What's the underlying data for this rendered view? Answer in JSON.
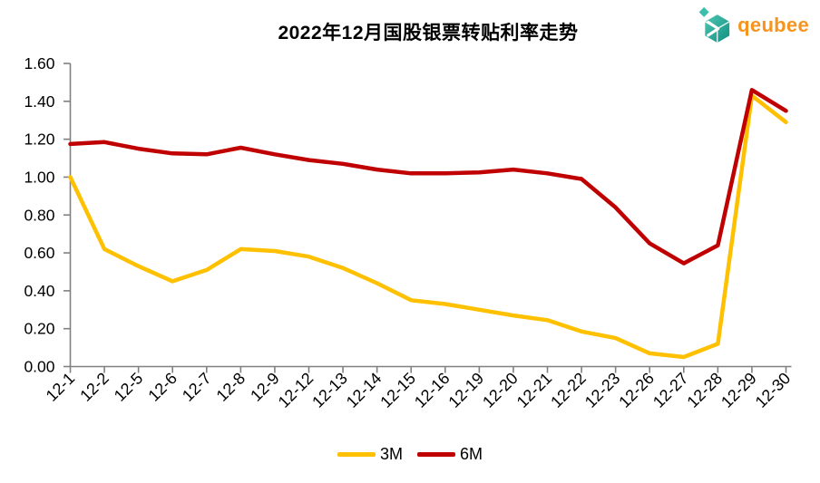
{
  "title": "2022年12月国股银票转贴利率走势",
  "logo": {
    "text": "qeubee",
    "text_color": "#F7941E",
    "mark_color_light": "#7ED4C4",
    "mark_color_mid": "#3BBFAC",
    "mark_color_dark": "#12897B"
  },
  "chart_data": {
    "type": "line",
    "title": "2022年12月国股银票转贴利率走势",
    "xlabel": "",
    "ylabel": "",
    "grid": false,
    "legend_position": "bottom",
    "axis_color": "#808080",
    "text_color": "#000000",
    "ylim": [
      0,
      1.6
    ],
    "ytick_step": 0.2,
    "ytick_labels": [
      "0.00",
      "0.20",
      "0.40",
      "0.60",
      "0.80",
      "1.00",
      "1.20",
      "1.40",
      "1.60"
    ],
    "categories": [
      "12-1",
      "12-2",
      "12-5",
      "12-6",
      "12-7",
      "12-8",
      "12-9",
      "12-12",
      "12-13",
      "12-14",
      "12-15",
      "12-16",
      "12-19",
      "12-20",
      "12-21",
      "12-22",
      "12-23",
      "12-26",
      "12-27",
      "12-28",
      "12-29",
      "12-30"
    ],
    "series": [
      {
        "name": "3M",
        "color": "#FFC000",
        "values": [
          1.0,
          0.62,
          0.53,
          0.45,
          0.51,
          0.62,
          0.61,
          0.58,
          0.52,
          0.44,
          0.35,
          0.33,
          0.3,
          0.27,
          0.245,
          0.185,
          0.15,
          0.07,
          0.05,
          0.12,
          1.43,
          1.29
        ]
      },
      {
        "name": "6M",
        "color": "#C00000",
        "values": [
          1.175,
          1.185,
          1.15,
          1.125,
          1.12,
          1.155,
          1.12,
          1.09,
          1.07,
          1.04,
          1.02,
          1.02,
          1.025,
          1.04,
          1.02,
          0.99,
          0.84,
          0.65,
          0.545,
          0.64,
          1.46,
          1.35
        ]
      }
    ]
  }
}
